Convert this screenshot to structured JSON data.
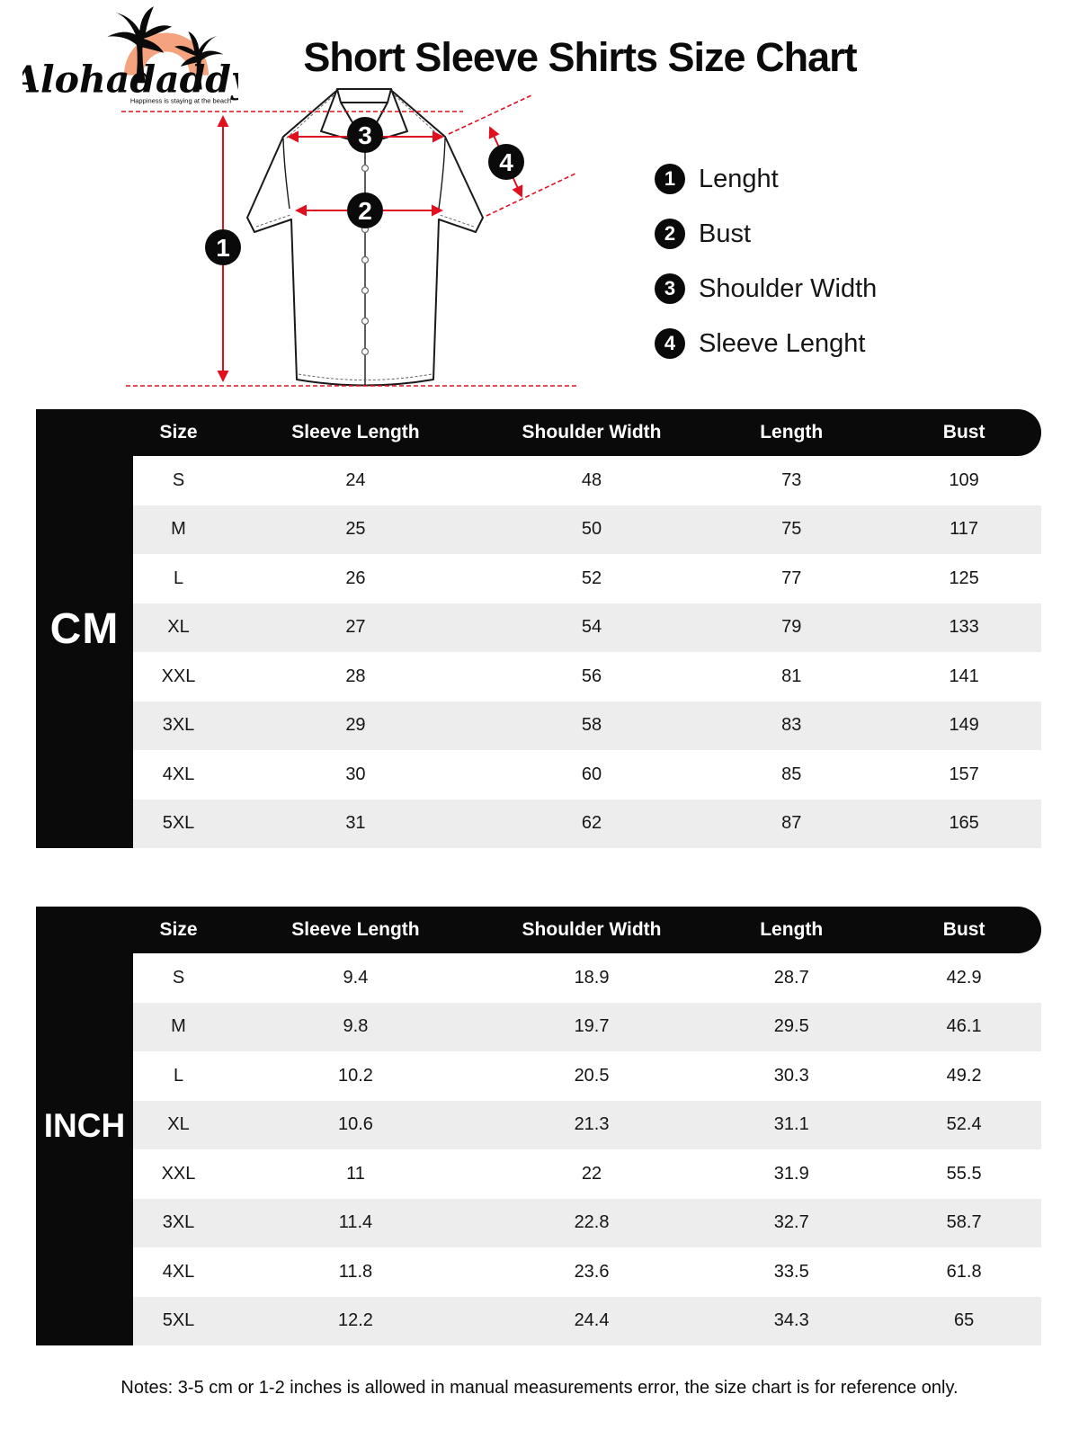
{
  "logo": {
    "brand": "Alohadaddy",
    "tagline": "Happiness is staying at the beach"
  },
  "title": "Short Sleeve Shirts Size Chart",
  "diagram": {
    "markers": [
      "1",
      "2",
      "3",
      "4"
    ]
  },
  "legend": {
    "items": [
      {
        "num": "1",
        "label": "Lenght"
      },
      {
        "num": "2",
        "label": "Bust"
      },
      {
        "num": "3",
        "label": "Shoulder Width"
      },
      {
        "num": "4",
        "label": "Sleeve Lenght"
      }
    ]
  },
  "tables": {
    "cm": {
      "unit": "CM",
      "columns": [
        "Size",
        "Sleeve Length",
        "Shoulder Width",
        "Length",
        "Bust"
      ],
      "rows": [
        [
          "S",
          "24",
          "48",
          "73",
          "109"
        ],
        [
          "M",
          "25",
          "50",
          "75",
          "117"
        ],
        [
          "L",
          "26",
          "52",
          "77",
          "125"
        ],
        [
          "XL",
          "27",
          "54",
          "79",
          "133"
        ],
        [
          "XXL",
          "28",
          "56",
          "81",
          "141"
        ],
        [
          "3XL",
          "29",
          "58",
          "83",
          "149"
        ],
        [
          "4XL",
          "30",
          "60",
          "85",
          "157"
        ],
        [
          "5XL",
          "31",
          "62",
          "87",
          "165"
        ]
      ]
    },
    "inch": {
      "unit": "INCH",
      "columns": [
        "Size",
        "Sleeve Length",
        "Shoulder Width",
        "Length",
        "Bust"
      ],
      "rows": [
        [
          "S",
          "9.4",
          "18.9",
          "28.7",
          "42.9"
        ],
        [
          "M",
          "9.8",
          "19.7",
          "29.5",
          "46.1"
        ],
        [
          "L",
          "10.2",
          "20.5",
          "30.3",
          "49.2"
        ],
        [
          "XL",
          "10.6",
          "21.3",
          "31.1",
          "52.4"
        ],
        [
          "XXL",
          "11",
          "22",
          "31.9",
          "55.5"
        ],
        [
          "3XL",
          "11.4",
          "22.8",
          "32.7",
          "58.7"
        ],
        [
          "4XL",
          "11.8",
          "23.6",
          "33.5",
          "61.8"
        ],
        [
          "5XL",
          "12.2",
          "24.4",
          "34.3",
          "65"
        ]
      ]
    }
  },
  "notes": "Notes: 3-5 cm or 1-2 inches is allowed in manual measurements error, the size chart is for reference only.",
  "colors": {
    "accent_red": "#e0101e",
    "row_alt": "#ededed",
    "ink_black": "#0a0a0a",
    "logo_orange": "#f4a37e"
  }
}
